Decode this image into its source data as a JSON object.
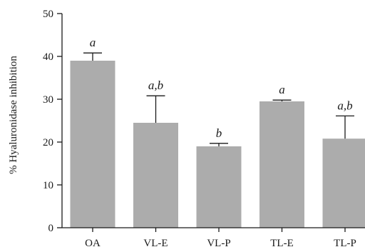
{
  "chart_data": {
    "type": "bar",
    "title": "",
    "xlabel": "",
    "ylabel": "% Hyaluronidase inhibition",
    "ylim": [
      0,
      50
    ],
    "yticks": [
      0,
      10,
      20,
      30,
      40,
      50
    ],
    "categories": [
      "OA",
      "VL-E",
      "VL-P",
      "TL-E",
      "TL-P"
    ],
    "values": [
      39,
      24.5,
      19,
      29.5,
      20.8
    ],
    "errors": [
      1.8,
      6.3,
      0.7,
      0.3,
      5.3
    ],
    "significance": [
      "a",
      "a,b",
      "b",
      "a",
      "a,b"
    ],
    "bar_color": "#acacac",
    "axis_color": "#1a1a1a",
    "grid": false,
    "legend": "none"
  }
}
